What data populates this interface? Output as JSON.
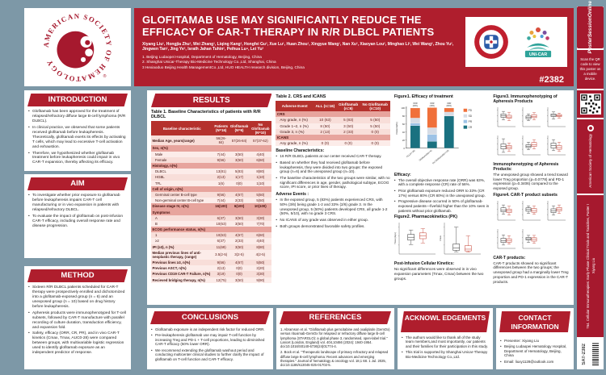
{
  "header": {
    "title": "GLOFITAMAB USE MAY SIGNIFICANTLY REDUCE THE EFFICACY OF CAR-T THERAPY IN R/R DLBCL PATIENTS",
    "authors": "Xiyang Liu¹, Hongjia Zhu², Wei Zhang¹, Liqing Kang², Hongfei Gu³, Xue Lu¹, Huan Zhou¹, Xingyue Wang¹, Nan Xu², Xiaoyan Lou², Minghao Li², Wei Wang², Zhou Yu², Jingwen Tan², Jing Ye², Israth Jahan Tuhin², Peihua Lu⁴, Lei Yu²",
    "affiliations": [
      "1. Beijing Ludaopei Hospital, Department of Hematology, Beijing, China",
      "2. Shanghai Unicar-Therapy Bio-Medicine Technology Co.,Ltd, Shanghai, China",
      "3 Hexiaoduo Beijing Health ManagementCo.,Ltd, HUO HEALTH research division, Beijing, China"
    ],
    "poster_number": "#2382",
    "ash_logo_text": "AMERICAN SOCIETY OF HEMATOLOGY",
    "unicar_label": "UNI-CAR"
  },
  "sidebar": {
    "logo": "PosterSessionOnline",
    "scan_text": "Scan the QR code to view this poster on a mobile device.",
    "ash_label": "American Society of Hematology",
    "session": "764. Cellular Immunotherapies: Early Phase Clinical Trials and Toxicities, Poster I",
    "presenter": "Xiyang Liu",
    "code": "SAT-2382"
  },
  "introduction": {
    "title": "INTRODUCTION",
    "bullets": [
      "Glofitamab has been approved for the treatment of relapsed/refractory diffuse large B-cell lymphoma (R/R DLBCL).",
      "In clinical practice, we observed that some patients received glofitamab before leukapheresis. Theoretically, glofitamab exerts its effects by activating T cells, which may lead to excessive T-cell activation and exhaustion.",
      "Therefore, we hypothesized whether glofitamab treatment before leukapheresis could impair in vivo CAR-T expansion, thereby affecting its efficacy."
    ]
  },
  "aim": {
    "title": "AIM",
    "bullets": [
      "To investigate whether prior exposure to glofitamab before leukapheresis impairs CAR-T cell manufacturing or in vivo expansion in patients with relapsed/refractory DLBCL.",
      "To evaluate the impact of glofitamab on post-infusion CAR-T efficacy, including overall response rate and disease progression."
    ]
  },
  "method": {
    "title": "METHOD",
    "bullets": [
      "Sixteen R/R DLBCL patients scheduled for CAR-T therapy were prospectively enrolled and dichotomized into a glofitamab-exposed group (n = 6) and an unexposed group (n = 10) based on drug history before leukapheresis.",
      "Apheresis products were immunophenotyped for T-cell subsets, followed by CAR-T manufacture with parallel recording of culture duration, transduction efficiency, and expansion fold.",
      "Safety, efficacy (ORR, CR, PR), and in vivo CAR-T kinetics (Cmax, Tmax, AUC0-28) were compared between groups, with multivariable logistic regression used to identify glofitamab exposure as an independent predictor of response."
    ]
  },
  "results": {
    "title": "RESULTS"
  },
  "table1": {
    "caption": "Table 1. Baseline Characteristics of patients with R/R DLBCL",
    "columns": [
      "Baseline characteristic",
      "Patients\n(N=16)",
      "Glofitamab\n(N=6)",
      "No Glofitamab\n(N=10)"
    ],
    "rows": [
      {
        "label": "Median Age, years(range)",
        "values": [
          "56(26-84)",
          "57(26-84)",
          "57(37-62)"
        ]
      },
      {
        "label": "Sex, n(%)",
        "values": [
          "",
          "",
          ""
        ],
        "type": "section"
      },
      {
        "label": "Male",
        "values": [
          "7(44)",
          "3(50)",
          "4(40)"
        ],
        "indent": true
      },
      {
        "label": "Female",
        "values": [
          "9(56)",
          "3(50)",
          "6(60)"
        ],
        "indent": true
      },
      {
        "label": "Histology, n(%)",
        "values": [
          "",
          "",
          ""
        ],
        "type": "section"
      },
      {
        "label": "DLBCL",
        "values": [
          "13(81)",
          "5(83)",
          "8(80)"
        ],
        "indent": true
      },
      {
        "label": "HGBL",
        "values": [
          "2(13)",
          "1(17)",
          "1(10)"
        ],
        "indent": true
      },
      {
        "label": "TFL",
        "values": [
          "1(6)",
          "0(0)",
          "1(10)"
        ],
        "indent": true
      },
      {
        "label": "Cell of origin, n(%)",
        "values": [
          "",
          "",
          ""
        ],
        "type": "section"
      },
      {
        "label": "Germinal center B-cell type",
        "values": [
          "9(56)",
          "4(67)",
          "5(50)"
        ],
        "indent": true
      },
      {
        "label": "Non-germinal center B-cell type",
        "values": [
          "7(44)",
          "2(33)",
          "5(50)"
        ],
        "indent": true
      },
      {
        "label": "Disease stage IV, n(%)",
        "values": [
          "16(100)",
          "6(100)",
          "10(100)"
        ],
        "type": "section"
      },
      {
        "label": "Symptoms",
        "values": [
          "",
          "",
          ""
        ],
        "type": "section"
      },
      {
        "label": "A",
        "values": [
          "6(37)",
          "3(50)",
          "3(30)"
        ],
        "indent": true
      },
      {
        "label": "B",
        "values": [
          "10(63)",
          "3(50)",
          "7(70)"
        ],
        "indent": true
      },
      {
        "label": "ECOG performance status, n(%)",
        "values": [
          "",
          "",
          ""
        ],
        "type": "section"
      },
      {
        "label": "1",
        "values": [
          "10(63)",
          "4(67)",
          "6(60)"
        ],
        "indent": true
      },
      {
        "label": "≥2",
        "values": [
          "6(37)",
          "2(33)",
          "4(40)"
        ],
        "indent": true
      },
      {
        "label": "IPI (≥3), n (%)",
        "values": [
          "11(69)",
          "3(50)",
          "8(80)"
        ]
      },
      {
        "label": "Median previous lines of anti-neoplastic therapy, (range)",
        "values": [
          "3.5(2-5)",
          "3(2-5)",
          "4(2-5)"
        ]
      },
      {
        "label": "Previous lines ≥3, n(%)",
        "values": [
          "9(56)",
          "4(67)",
          "5(50)"
        ]
      },
      {
        "label": "Previous ASCT, n(%)",
        "values": [
          "2(13)",
          "0(0)",
          "2(20)"
        ]
      },
      {
        "label": "Previous CD19 CAR-T Failure, n(%)",
        "values": [
          "3(19)",
          "0(0)",
          "3(30)"
        ]
      },
      {
        "label": "Recieved bridging therapy, n(%)",
        "values": [
          "12(75)",
          "3(50)",
          "9(90)"
        ]
      }
    ]
  },
  "table2": {
    "caption": "Table 2. CRS and ICANS",
    "columns": [
      "Adverse Event",
      "ALL (n=16)",
      "Glofitamab\n(n=6)",
      "No Glofitamab\n(n=10)"
    ],
    "rows": [
      {
        "label": "CRS",
        "values": [
          "",
          "",
          ""
        ],
        "type": "section"
      },
      {
        "label": "Any grade, n (%)",
        "values": [
          "10 (63)",
          "5 (83)",
          "5 (50)"
        ],
        "indent": true
      },
      {
        "label": "Grade 1~2, n (%)",
        "values": [
          "8 (50)",
          "3 (50)",
          "5 (50)"
        ],
        "indent": true
      },
      {
        "label": "Grade 3, n (%)",
        "values": [
          "2 (13)",
          "2 (33)",
          "0 (0)"
        ],
        "indent": true
      },
      {
        "label": "ICANS",
        "values": [
          "",
          "",
          ""
        ],
        "type": "section"
      },
      {
        "label": "Any grade, n (%)",
        "values": [
          "0 (0)",
          "0 (0)",
          "0 (0)"
        ],
        "indent": true
      }
    ]
  },
  "notes1": {
    "heading": "Baseline Characteristics:",
    "bullets": [
      "16 R/R DLBCL patients at our center received CAR-T therapy.",
      "Based on whether they had received glofitamab before leukapheresis, they were divided into two groups: the exposed group (n=6) and the unexposed group (n=10).",
      "The baseline characteristics of the two groups were similar, with no significant differences in age, gender, pathological subtype, ECOG score, IPI score, or prior lines of therapy."
    ]
  },
  "notes2": {
    "heading": "Adverse Events :",
    "bullets": [
      "In the exposed group, 5 (83%) patients experienced CRS, with 50% (3/6) being grade 1-2 and 33% (2/6) grade 3. In the unexposed group, 5 (50%) patients developed CRS, all grade 1-2 (50%, 5/10), with no grade 3 CRS.",
      "No ICANS of any grade was observed in either group.",
      "Both groups demonstrated favorable safety profiles."
    ]
  },
  "figure1": {
    "title": "Figure1. Efficacy of treatment",
    "notes_heading": "Efficacy:",
    "bullets": [
      "The overall objective response rate (ORR) was 63%, with a complete response (CR) rate of 56%.",
      "Prior glofitamab exposure reduced ORR to 33% (CR 17%) versus 80% (CR 80%) in the unexposed group.",
      "Progressive disease occurred in 50% of glofitamab-exposed patients—fivefold higher than the 10% seen in patients without prior glofitamab."
    ]
  },
  "figure2": {
    "title": "Figure2.  Pharmacokinetics (PK)",
    "notes_heading": "Post-Infusion Cellular Kinetics:",
    "text": "No significant differences were observed in in vivo expansion parameters (Tmax, Cmax) between the two groups."
  },
  "figure3": {
    "title": "Figure3. Immunophenotyping of Apheresis Products",
    "notes_heading": "Immunophenotyping of Apheresis Products:",
    "text": "The unexposed group showed a trend toward lower Treg proportion (p=0.0778) and PD-1 expression (p=0.3406) compared to the exposed group."
  },
  "figure4": {
    "title": "Figure4. CAR-T product subsets",
    "notes_heading": "CAR-T products:",
    "text": "CAR-T products showed no significant differences between the two groups; the unexposed group had a marginally lower Treg proportion and PD-1 expression in the CAR-T products."
  },
  "conclusions": {
    "title": "CONCLUSIONS",
    "bullets": [
      "Glofitamab exposure is an independent risk factor for reduced ORR.",
      "Pre-leukapheresis glofitamab use may impair T-cell function by increasing Treg and PD-1 + T-cell proportions, leading to diminished CAR-T efficacy (50% lower ORR).",
      "We recommend extending the glofitamab washout period and conducting multicenter clinical studies to further clarify the impact of glofitamab on T-cell function and CAR-T efficacy."
    ]
  },
  "references": {
    "title": "REFERENCES",
    "items": [
      "1. Abramson et al. \"Glofitamab plus gemcitabine and oxaliplatin (GemOx) versus rituximab-GemOx for relapsed or refractory diffuse large B-cell lymphoma (STARGLO): a global phase 3, randomised, open-label trial.\" Lancet (London, England) vol. 404,10466 (2024): 1940-1954. doi:10.1016/S0140-6736(24)01774-4.",
      "2. Bock et al. \"Therapeutic landscape of primary refractory and relapsed diffuse large B-cell lymphoma: Recent advances and emerging therapies.\" Journal of hematology & oncology vol. 18,1 68. 1 Jul. 2025, doi:10.1186/s13045-025-01702-5."
    ]
  },
  "acknowledgements": {
    "title": "ACKNOWL EDGEMENTS",
    "bullets": [
      "The authors would like to thank all of the study team members,and most importantly, our patients and their families for their participation in this study.",
      "This trial is supported by Shanghai Unicar-Therapy Bio-Medicine Technology Co.,Ltd."
    ]
  },
  "contact": {
    "title": "CONTACT INFORMATION",
    "bullets": [
      "Presenter: Xiyang Liu",
      "Beijing Ludaopei Hematology Hospital, Department of Hematology, Beijing, China",
      "Email: liuxy1128@outlook.com"
    ]
  },
  "chart_data": [
    {
      "id": "figure1",
      "type": "bar",
      "stacked": true,
      "title": "Figure1. Efficacy of treatment",
      "ylabel": "Patients(%)",
      "ylim": [
        0,
        100
      ],
      "grid": false,
      "legend_position": "right",
      "categories": [
        "ALL(n=16)",
        "Glofitamab(n=6)",
        "No Glofitamab(n=10)"
      ],
      "series": [
        {
          "name": "CR",
          "color": "#1a7180",
          "values": [
            56,
            17,
            80
          ]
        },
        {
          "name": "PR",
          "color": "#9dc3e6",
          "values": [
            6,
            17,
            0
          ]
        },
        {
          "name": "SD",
          "color": "#d6dce5",
          "values": [
            13,
            17,
            10
          ]
        },
        {
          "name": "PD",
          "color": "#f0703a",
          "values": [
            25,
            50,
            10
          ]
        }
      ],
      "bar_top_labels": [
        "ORR (63%)",
        "ORR (33%)",
        "ORR (80%)"
      ],
      "legend_order": [
        "PD",
        "SD",
        "PR",
        "CR"
      ]
    },
    {
      "id": "figure2",
      "type": "boxplot",
      "title": "Figure2. Pharmacokinetics (PK)",
      "groups": [
        "Glofitamab",
        "No Glofitamab"
      ],
      "group_colors": [
        "#2e2e2e",
        "#c0392b"
      ],
      "panels": [
        {
          "ylabel": "Tmax (days)",
          "boxes": [
            [
              0.3,
              0.45,
              0.55,
              0.65,
              0.8
            ],
            [
              0.35,
              0.5,
              0.6,
              0.7,
              0.85
            ]
          ]
        },
        {
          "ylabel": "Cmax",
          "boxes": [
            [
              0.05,
              0.1,
              0.18,
              0.32,
              0.9
            ],
            [
              0.04,
              0.08,
              0.14,
              0.26,
              0.6
            ]
          ]
        }
      ]
    },
    {
      "id": "figure3",
      "type": "boxplot",
      "title": "Figure3. Immunophenotyping of Apheresis Products",
      "groups": [
        "Glofitamab",
        "No Glofitamab"
      ],
      "group_colors": [
        "#2e2e2e",
        "#c0392b"
      ],
      "panels": [
        {
          "boxes": [
            [
              0.35,
              0.5,
              0.6,
              0.7,
              0.85
            ],
            [
              0.3,
              0.45,
              0.52,
              0.62,
              0.8
            ]
          ]
        },
        {
          "boxes": [
            [
              0.3,
              0.42,
              0.5,
              0.58,
              0.7
            ],
            [
              0.35,
              0.48,
              0.56,
              0.66,
              0.78
            ]
          ]
        },
        {
          "boxes": [
            [
              0.4,
              0.55,
              0.62,
              0.7,
              0.82
            ],
            [
              0.45,
              0.55,
              0.6,
              0.66,
              0.75
            ]
          ]
        },
        {
          "boxes": [
            [
              0.1,
              0.3,
              0.45,
              0.6,
              0.9
            ],
            [
              0.15,
              0.3,
              0.4,
              0.5,
              0.65
            ]
          ]
        },
        {
          "boxes": [
            [
              0.25,
              0.38,
              0.45,
              0.55,
              0.7
            ],
            [
              0.3,
              0.45,
              0.55,
              0.68,
              0.85
            ]
          ]
        },
        {
          "boxes": [
            [
              0.2,
              0.35,
              0.5,
              0.65,
              0.85
            ],
            [
              0.15,
              0.28,
              0.38,
              0.5,
              0.7
            ]
          ]
        }
      ]
    },
    {
      "id": "figure4",
      "type": "boxplot",
      "title": "Figure4. CAR-T product subsets",
      "groups": [
        "Glofitamab",
        "No Glofitamab"
      ],
      "group_colors": [
        "#2e2e2e",
        "#c0392b"
      ],
      "panels": [
        {
          "boxes": [
            [
              0.3,
              0.45,
              0.55,
              0.68,
              0.85
            ],
            [
              0.25,
              0.4,
              0.5,
              0.6,
              0.78
            ]
          ]
        },
        {
          "boxes": [
            [
              0.35,
              0.48,
              0.58,
              0.68,
              0.8
            ],
            [
              0.3,
              0.42,
              0.52,
              0.64,
              0.8
            ]
          ]
        },
        {
          "boxes": [
            [
              0.25,
              0.4,
              0.5,
              0.62,
              0.8
            ],
            [
              0.35,
              0.5,
              0.6,
              0.7,
              0.85
            ]
          ]
        },
        {
          "boxes": [
            [
              0.15,
              0.3,
              0.4,
              0.55,
              0.75
            ],
            [
              0.2,
              0.32,
              0.42,
              0.52,
              0.7
            ]
          ]
        },
        {
          "boxes": [
            [
              0.3,
              0.45,
              0.52,
              0.6,
              0.72
            ],
            [
              0.25,
              0.38,
              0.48,
              0.58,
              0.72
            ]
          ]
        }
      ]
    }
  ]
}
